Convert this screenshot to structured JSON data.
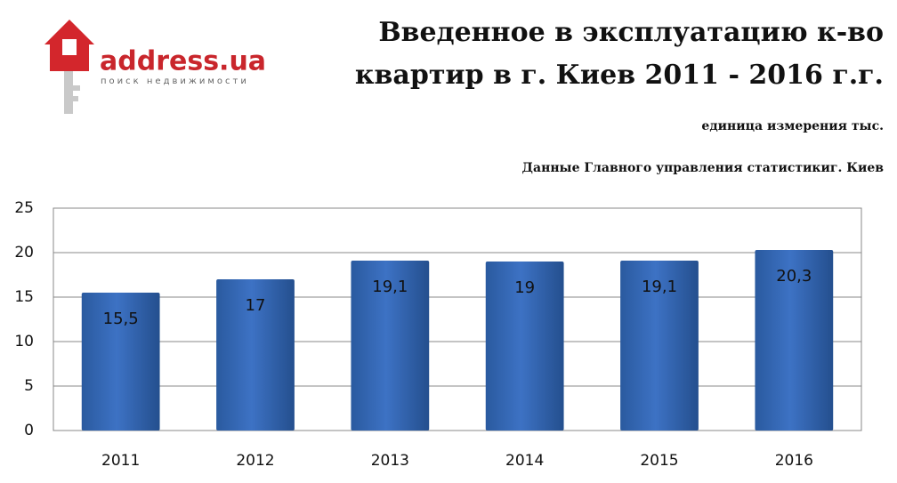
{
  "logo": {
    "name": "address.ua",
    "tagline": "поиск недвижимости"
  },
  "chart_data": {
    "type": "bar",
    "title": [
      "Введенное в эксплуатацию  к-во",
      "квартир в г. Киев 2011 - 2016 г.г."
    ],
    "subtitle": "единица измерения тыс.",
    "source": "Данные Главного управления статистикиг. Киев",
    "categories": [
      "2011",
      "2012",
      "2013",
      "2014",
      "2015",
      "2016"
    ],
    "values": [
      15.5,
      17,
      19.1,
      19,
      19.1,
      20.3
    ],
    "value_labels": [
      "15,5",
      "17",
      "19,1",
      "19",
      "19,1",
      "20,3"
    ],
    "color": "#3d72c4",
    "ylim": [
      0,
      25
    ],
    "yticks": [
      0,
      5,
      10,
      15,
      20,
      25
    ],
    "grid": true
  }
}
